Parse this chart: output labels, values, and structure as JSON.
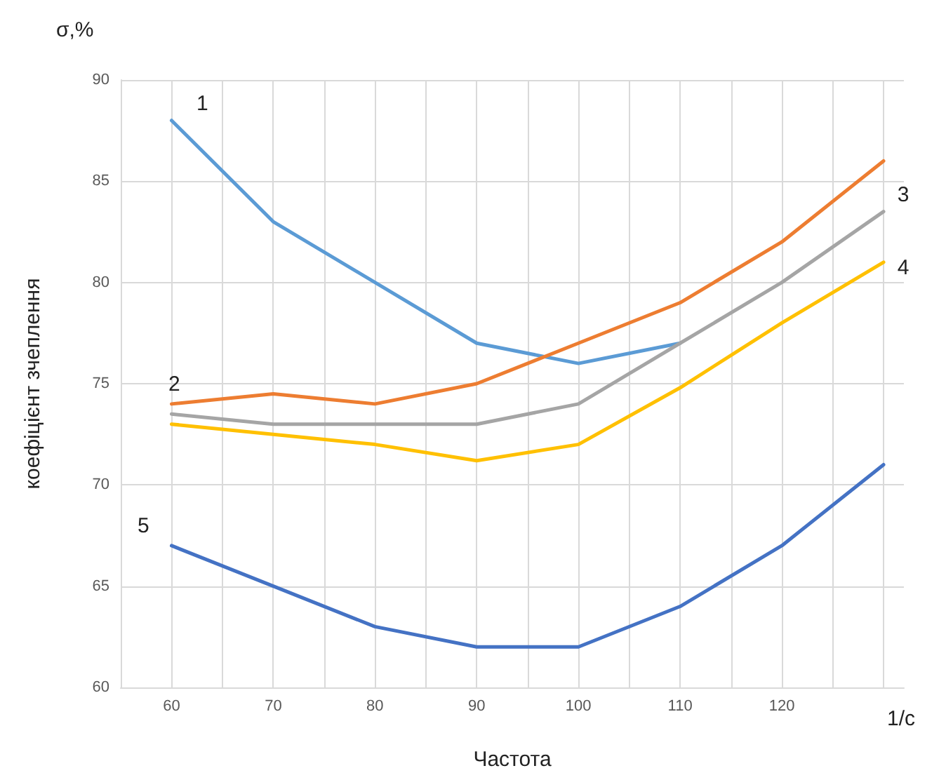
{
  "chart_data": {
    "type": "line",
    "xlabel": "Частота",
    "ylabel": "коефіцієнт зчеплення",
    "x": [
      60,
      70,
      80,
      90,
      100,
      110,
      120,
      130
    ],
    "xlim": [
      55,
      132
    ],
    "xticks": [
      60,
      {
        "value": 65,
        "label": null
      },
      70,
      {
        "value": 75,
        "label": null
      },
      80,
      {
        "value": 85,
        "label": null
      },
      90,
      {
        "value": 95,
        "label": null
      },
      100,
      {
        "value": 105,
        "label": null
      },
      110,
      {
        "value": 115,
        "label": null
      },
      120,
      {
        "value": 125,
        "label": null
      },
      {
        "value": 130,
        "label": null
      }
    ],
    "ylim": [
      60,
      90
    ],
    "yticks": [
      60,
      65,
      70,
      75,
      80,
      85,
      90
    ],
    "grid": true,
    "marker": "none",
    "line_style": "solid",
    "series": [
      {
        "name": "1",
        "color": "#5b9bd5",
        "values": [
          88,
          83,
          80,
          77,
          76,
          77,
          null,
          null
        ]
      },
      {
        "name": "2",
        "color": "#ed7d31",
        "values": [
          74,
          74.5,
          74,
          75,
          77,
          79,
          82,
          86
        ]
      },
      {
        "name": "3",
        "color": "#a5a5a5",
        "values": [
          73.5,
          73,
          73,
          73,
          74,
          77,
          80,
          83.5
        ]
      },
      {
        "name": "4",
        "color": "#ffc000",
        "values": [
          73,
          72.5,
          72,
          71.2,
          72,
          74.8,
          78,
          81
        ]
      },
      {
        "name": "5",
        "color": "#4472c4",
        "values": [
          67,
          65,
          63,
          62,
          62,
          64,
          67,
          71
        ]
      }
    ],
    "annotations": [
      "σ,%",
      "1/с"
    ]
  }
}
